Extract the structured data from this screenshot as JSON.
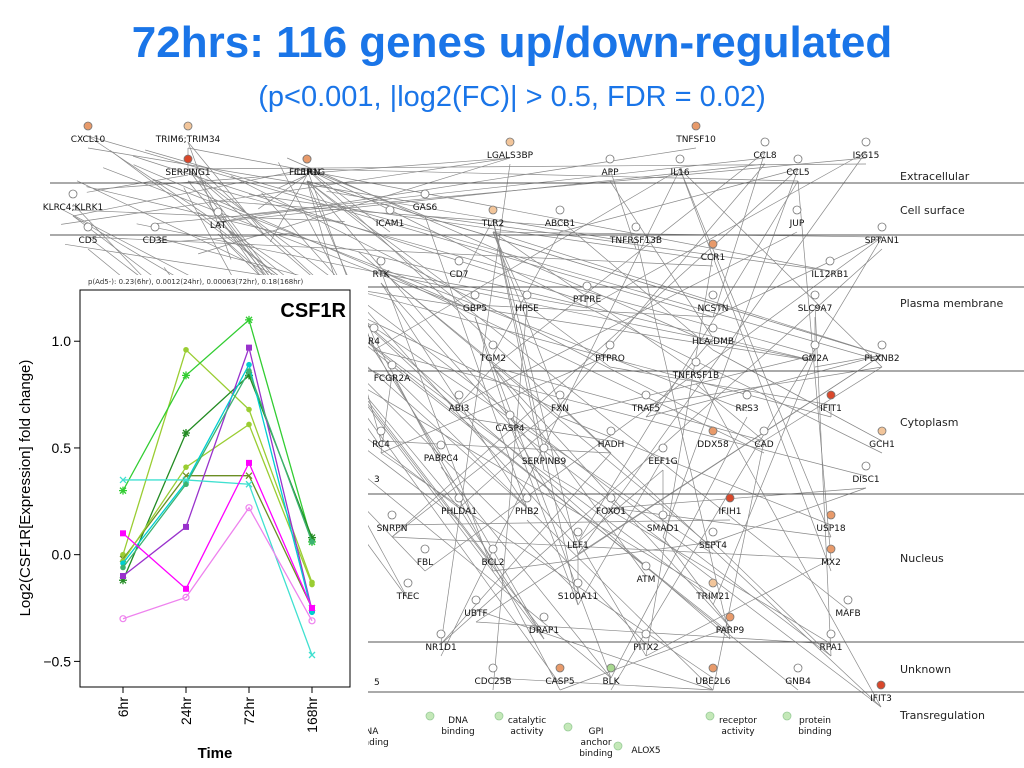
{
  "title": "72hrs: 116 genes up/down-regulated",
  "subtitle": "(p<0.001, |log2(FC)| > 0.5, FDR = 0.02)",
  "colors": {
    "title": "#1a75e8",
    "strong_up": "#d9482b",
    "up": "#e89a6a",
    "weak_up": "#f2c59a",
    "down": "#a8d890",
    "empty": "#ffffff",
    "band_line": "#555555",
    "edge": "#888888",
    "func_circle": "#c4e8b8"
  },
  "network": {
    "bands": [
      "Extracellular",
      "Cell surface",
      "Plasma membrane",
      "Cytoplasm",
      "Nucleus",
      "Unknown",
      "Transregulation"
    ],
    "genes": [
      {
        "label": "CXCL10",
        "state": "up"
      },
      {
        "label": "TRIM6;TRIM34",
        "state": "weak_up"
      },
      {
        "label": "FCER1G",
        "state": "up"
      },
      {
        "label": "TNFSF10",
        "state": "up"
      },
      {
        "label": "CCL8",
        "state": "empty"
      },
      {
        "label": "ISG15",
        "state": "empty"
      },
      {
        "label": "SERPING1",
        "state": "strong_up"
      },
      {
        "label": "IL1RN",
        "state": "up"
      },
      {
        "label": "LGALS3BP",
        "state": "weak_up"
      },
      {
        "label": "APP",
        "state": "empty"
      },
      {
        "label": "IL16",
        "state": "empty"
      },
      {
        "label": "CCL5",
        "state": "empty"
      },
      {
        "label": "KLRC4;KLRK1",
        "state": "empty"
      },
      {
        "label": "GAS6",
        "state": "empty"
      },
      {
        "label": "LAT",
        "state": "empty"
      },
      {
        "label": "CD5",
        "state": "empty"
      },
      {
        "label": "CD3E",
        "state": "empty"
      },
      {
        "label": "ICAM1",
        "state": "empty"
      },
      {
        "label": "ABCB1",
        "state": "empty"
      },
      {
        "label": "TLR2",
        "state": "weak_up"
      },
      {
        "label": "TNFRSF13B",
        "state": "empty"
      },
      {
        "label": "JUP",
        "state": "empty"
      },
      {
        "label": "SPTAN1",
        "state": "empty"
      },
      {
        "label": "RTK",
        "state": "empty"
      },
      {
        "label": "CD7",
        "state": "empty"
      },
      {
        "label": "CCR1",
        "state": "up"
      },
      {
        "label": "IL12RB1",
        "state": "empty"
      },
      {
        "label": "GBP5",
        "state": "empty"
      },
      {
        "label": "HPSE",
        "state": "empty"
      },
      {
        "label": "PTPRE",
        "state": "empty"
      },
      {
        "label": "NCSTN",
        "state": "empty"
      },
      {
        "label": "SLC9A7",
        "state": "empty"
      },
      {
        "label": "R4",
        "state": "empty"
      },
      {
        "label": "HLA-DMB",
        "state": "empty"
      },
      {
        "label": "TGM2",
        "state": "empty"
      },
      {
        "label": "PTPRO",
        "state": "empty"
      },
      {
        "label": "GM2A",
        "state": "empty"
      },
      {
        "label": "PLXNB2",
        "state": "empty"
      },
      {
        "label": "FCGR2A",
        "state": "empty"
      },
      {
        "label": "TNFRSF1B",
        "state": "empty"
      },
      {
        "label": "ABI3",
        "state": "empty"
      },
      {
        "label": "FXN",
        "state": "empty"
      },
      {
        "label": "TRAF5",
        "state": "empty"
      },
      {
        "label": "RPS3",
        "state": "empty"
      },
      {
        "label": "IFIT1",
        "state": "strong_up"
      },
      {
        "label": "CASP4",
        "state": "empty"
      },
      {
        "label": "RC4",
        "state": "empty"
      },
      {
        "label": "HADH",
        "state": "empty"
      },
      {
        "label": "DDX58",
        "state": "up"
      },
      {
        "label": "CAD",
        "state": "empty"
      },
      {
        "label": "GCH1",
        "state": "weak_up"
      },
      {
        "label": "PABPC4",
        "state": "empty"
      },
      {
        "label": "SERPINB9",
        "state": "empty"
      },
      {
        "label": "EEF1G",
        "state": "empty"
      },
      {
        "label": "DISC1",
        "state": "empty"
      },
      {
        "label": "PHLDA1",
        "state": "empty"
      },
      {
        "label": "PHB2",
        "state": "empty"
      },
      {
        "label": "FOXO1",
        "state": "empty"
      },
      {
        "label": "IFIH1",
        "state": "strong_up"
      },
      {
        "label": "SNRPN",
        "state": "empty"
      },
      {
        "label": "SMAD1",
        "state": "empty"
      },
      {
        "label": "USP18",
        "state": "up"
      },
      {
        "label": "LEF1",
        "state": "empty"
      },
      {
        "label": "SEPT4",
        "state": "empty"
      },
      {
        "label": "FBL",
        "state": "empty"
      },
      {
        "label": "BCL2",
        "state": "empty"
      },
      {
        "label": "MX2",
        "state": "up"
      },
      {
        "label": "ATM",
        "state": "empty"
      },
      {
        "label": "TFEC",
        "state": "empty"
      },
      {
        "label": "S100A11",
        "state": "empty"
      },
      {
        "label": "TRIM21",
        "state": "weak_up"
      },
      {
        "label": "MAFB",
        "state": "empty"
      },
      {
        "label": "UBTF",
        "state": "empty"
      },
      {
        "label": "DRAP1",
        "state": "empty"
      },
      {
        "label": "PARP9",
        "state": "up"
      },
      {
        "label": "NR1D1",
        "state": "empty"
      },
      {
        "label": "PITX2",
        "state": "empty"
      },
      {
        "label": "RPA1",
        "state": "empty"
      },
      {
        "label": "CDC25B",
        "state": "empty"
      },
      {
        "label": "CASP5",
        "state": "up"
      },
      {
        "label": "BLK",
        "state": "down"
      },
      {
        "label": "UBE2L6",
        "state": "up"
      },
      {
        "label": "GNB4",
        "state": "empty"
      },
      {
        "label": "IFIT3",
        "state": "strong_up"
      }
    ],
    "functions": [
      "NA binding",
      "DNA binding",
      "catalytic activity",
      "GPI anchor binding",
      "ALOX5",
      "receptor activity",
      "protein binding"
    ],
    "fn_lines": [
      [
        "NA",
        "binding"
      ],
      [
        "DNA",
        "binding"
      ],
      [
        "catalytic",
        "activity"
      ],
      [
        "GPI",
        "anchor",
        "binding"
      ],
      [
        "ALOX5"
      ],
      [
        "receptor",
        "activity"
      ],
      [
        "protein",
        "binding"
      ]
    ],
    "left_edge_labels": [
      "3",
      "5"
    ]
  },
  "chart_data": {
    "type": "line",
    "title": "CSF1R",
    "subtitle": "p(Ad5-): 0.23(6hr), 0.0012(24hr), 0.00063(72hr), 0.18(168hr)",
    "xlabel": "Time",
    "ylabel": "Log2(CSF1R[Expression] fold change)",
    "categories": [
      "6hr",
      "24hr",
      "72hr",
      "168hr"
    ],
    "yticks": [
      "1.0",
      "0.5",
      "0.0",
      "−0.5"
    ],
    "ytick_values": [
      1.0,
      0.5,
      0.0,
      -0.5
    ],
    "ylim": [
      -0.62,
      1.24
    ],
    "grid": false,
    "series": [
      {
        "color": "#9acd32",
        "marker": "dot",
        "values": [
          0.0,
          0.96,
          0.68,
          -0.13
        ]
      },
      {
        "color": "#32cd32",
        "marker": "star",
        "values": [
          0.3,
          0.84,
          1.1,
          0.06
        ]
      },
      {
        "color": "#228b22",
        "marker": "star",
        "values": [
          -0.12,
          0.57,
          0.84,
          0.08
        ]
      },
      {
        "color": "#6b8e23",
        "marker": "cross",
        "values": [
          -0.02,
          0.37,
          0.37,
          -0.25
        ]
      },
      {
        "color": "#9acd32",
        "marker": "dot",
        "values": [
          -0.03,
          0.41,
          0.61,
          -0.14
        ]
      },
      {
        "color": "#9932cc",
        "marker": "square",
        "values": [
          -0.1,
          0.13,
          0.97,
          -0.26
        ]
      },
      {
        "color": "#00ced1",
        "marker": "dot",
        "values": [
          -0.04,
          0.34,
          0.89,
          -0.27
        ]
      },
      {
        "color": "#3cb371",
        "marker": "dot",
        "values": [
          -0.06,
          0.33,
          0.86,
          0.06
        ]
      },
      {
        "color": "#40e0d0",
        "marker": "cross",
        "values": [
          0.35,
          0.35,
          0.33,
          -0.47
        ]
      },
      {
        "color": "#ff00ff",
        "marker": "square",
        "values": [
          0.1,
          -0.16,
          0.43,
          -0.25
        ]
      },
      {
        "color": "#ee82ee",
        "marker": "circle",
        "values": [
          -0.3,
          -0.2,
          0.22,
          -0.31
        ]
      }
    ]
  }
}
